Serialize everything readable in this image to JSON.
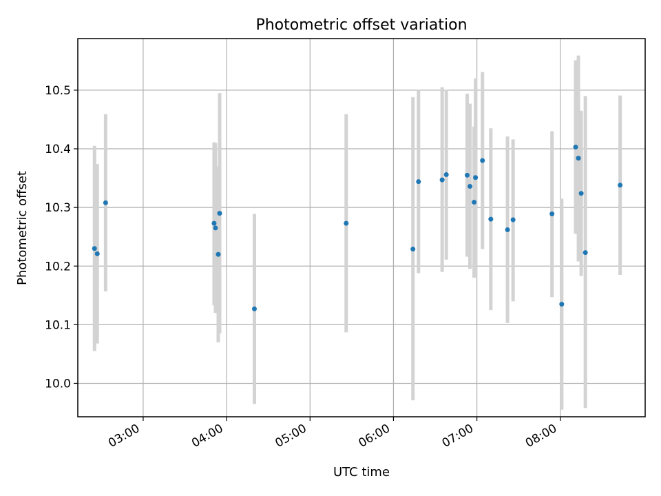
{
  "chart_data": {
    "type": "scatter",
    "title": "Photometric offset variation",
    "xlabel": "UTC time",
    "ylabel": "Photometric offset",
    "xlim": [
      "02:13",
      "09:01"
    ],
    "ylim": [
      9.943,
      10.588
    ],
    "x_ticks": [
      "03:00",
      "04:00",
      "05:00",
      "06:00",
      "07:00",
      "08:00"
    ],
    "y_ticks": [
      10.0,
      10.1,
      10.2,
      10.3,
      10.4,
      10.5
    ],
    "grid": true,
    "marker_color": "#1f77b4",
    "errorbar_color": "#d3d3d3",
    "points": [
      {
        "time": "02:25",
        "y": 10.23,
        "ylo": 10.055,
        "yhi": 10.405
      },
      {
        "time": "02:27",
        "y": 10.221,
        "ylo": 10.068,
        "yhi": 10.374
      },
      {
        "time": "02:33",
        "y": 10.308,
        "ylo": 10.157,
        "yhi": 10.459
      },
      {
        "time": "03:51",
        "y": 10.273,
        "ylo": 10.133,
        "yhi": 10.411
      },
      {
        "time": "03:52",
        "y": 10.265,
        "ylo": 10.12,
        "yhi": 10.41
      },
      {
        "time": "03:54",
        "y": 10.22,
        "ylo": 10.07,
        "yhi": 10.37
      },
      {
        "time": "03:55",
        "y": 10.29,
        "ylo": 10.085,
        "yhi": 10.495
      },
      {
        "time": "04:20",
        "y": 10.127,
        "ylo": 9.965,
        "yhi": 10.289
      },
      {
        "time": "05:26",
        "y": 10.273,
        "ylo": 10.087,
        "yhi": 10.459
      },
      {
        "time": "06:14",
        "y": 10.229,
        "ylo": 9.971,
        "yhi": 10.488
      },
      {
        "time": "06:18",
        "y": 10.344,
        "ylo": 10.188,
        "yhi": 10.5
      },
      {
        "time": "06:35",
        "y": 10.347,
        "ylo": 10.19,
        "yhi": 10.505
      },
      {
        "time": "06:38",
        "y": 10.356,
        "ylo": 10.211,
        "yhi": 10.501
      },
      {
        "time": "06:53",
        "y": 10.355,
        "ylo": 10.216,
        "yhi": 10.494
      },
      {
        "time": "06:55",
        "y": 10.336,
        "ylo": 10.195,
        "yhi": 10.477
      },
      {
        "time": "06:58",
        "y": 10.309,
        "ylo": 10.18,
        "yhi": 10.438
      },
      {
        "time": "06:59",
        "y": 10.351,
        "ylo": 10.182,
        "yhi": 10.52
      },
      {
        "time": "07:04",
        "y": 10.38,
        "ylo": 10.229,
        "yhi": 10.531
      },
      {
        "time": "07:10",
        "y": 10.28,
        "ylo": 10.125,
        "yhi": 10.435
      },
      {
        "time": "07:22",
        "y": 10.262,
        "ylo": 10.103,
        "yhi": 10.421
      },
      {
        "time": "07:26",
        "y": 10.279,
        "ylo": 10.14,
        "yhi": 10.416
      },
      {
        "time": "07:54",
        "y": 10.289,
        "ylo": 10.147,
        "yhi": 10.43
      },
      {
        "time": "08:01",
        "y": 10.135,
        "ylo": 9.955,
        "yhi": 10.315
      },
      {
        "time": "08:11",
        "y": 10.403,
        "ylo": 10.255,
        "yhi": 10.551
      },
      {
        "time": "08:13",
        "y": 10.384,
        "ylo": 10.208,
        "yhi": 10.559
      },
      {
        "time": "08:15",
        "y": 10.324,
        "ylo": 10.183,
        "yhi": 10.465
      },
      {
        "time": "08:18",
        "y": 10.223,
        "ylo": 9.958,
        "yhi": 10.49
      },
      {
        "time": "08:43",
        "y": 10.338,
        "ylo": 10.185,
        "yhi": 10.491
      }
    ]
  }
}
